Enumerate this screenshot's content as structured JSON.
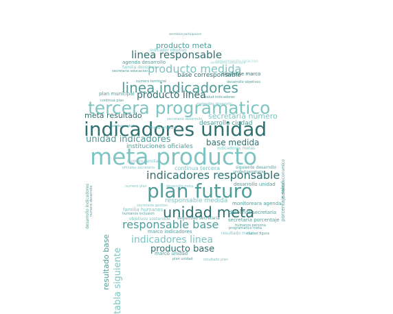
{
  "colors": {
    "dark": "#2f6f6f",
    "mid": "#4f9c9a",
    "light": "#7ec4c2",
    "pale": "#a9d8d6"
  },
  "words": [
    {
      "text": "meta producto",
      "tone": "light"
    },
    {
      "text": "indicadores unidad",
      "tone": "dark"
    },
    {
      "text": "plan futuro",
      "tone": "mid"
    },
    {
      "text": "tercera programatico",
      "tone": "light"
    },
    {
      "text": "unidad meta",
      "tone": "dark"
    },
    {
      "text": "linea indicadores",
      "tone": "mid"
    },
    {
      "text": "indicadores responsable",
      "tone": "dark"
    },
    {
      "text": "producto medida",
      "tone": "light"
    },
    {
      "text": "linea responsable",
      "tone": "dark"
    },
    {
      "text": "responsable base",
      "tone": "mid"
    },
    {
      "text": "indicadores linea",
      "tone": "light"
    },
    {
      "text": "unidad indicadores",
      "tone": "mid"
    },
    {
      "text": "producto linea",
      "tone": "dark"
    },
    {
      "text": "producto base",
      "tone": "dark"
    },
    {
      "text": "producto meta",
      "tone": "mid"
    },
    {
      "text": "base medida",
      "tone": "dark"
    },
    {
      "text": "meta resultado",
      "tone": "dark"
    },
    {
      "text": "secretaria numero",
      "tone": "light"
    },
    {
      "text": "instituciones oficiales",
      "tone": "mid"
    },
    {
      "text": "base corresponsable",
      "tone": "dark"
    },
    {
      "text": "tabla siguiente",
      "tone": "light"
    },
    {
      "text": "resultado base",
      "tone": "mid"
    },
    {
      "text": "desarrollo ciudad",
      "tone": "mid"
    },
    {
      "text": "responsable medida",
      "tone": "light"
    },
    {
      "text": "continua tercera",
      "tone": "light"
    },
    {
      "text": "agenda desarrollo",
      "tone": "mid"
    },
    {
      "text": "plan municipal",
      "tone": "mid"
    },
    {
      "text": "marco indicadores",
      "tone": "mid"
    },
    {
      "text": "marco unidad",
      "tone": "mid"
    },
    {
      "text": "siguiente marco",
      "tone": "dark"
    },
    {
      "text": "secretaria porcentaje",
      "tone": "mid"
    },
    {
      "text": "porcentaje salud",
      "tone": "mid"
    },
    {
      "text": "desarrollo unidad",
      "tone": "mid"
    },
    {
      "text": "numero familia",
      "tone": "light"
    },
    {
      "text": "seguridad secretaria",
      "tone": "mid"
    },
    {
      "text": "derechos secretaria",
      "tone": "mid"
    },
    {
      "text": "monitoreara agenda",
      "tone": "mid"
    },
    {
      "text": "familia humanos",
      "tone": "light"
    },
    {
      "text": "objetivos sostenible",
      "tone": "light"
    },
    {
      "text": "resultado meta",
      "tone": "light"
    },
    {
      "text": "continua plan",
      "tone": "mid"
    },
    {
      "text": "numero territorial",
      "tone": "mid"
    },
    {
      "text": "secretaria educacion",
      "tone": "mid"
    },
    {
      "text": "indicador objetivo",
      "tone": "light"
    },
    {
      "text": "seguimiento relacion",
      "tone": "pale"
    },
    {
      "text": "desarrollo objetivos",
      "tone": "mid"
    },
    {
      "text": "humanos persona",
      "tone": "mid"
    },
    {
      "text": "programatico meta",
      "tone": "mid"
    },
    {
      "text": "ciudad figura",
      "tone": "mid"
    },
    {
      "text": "secretaria participacion",
      "tone": "mid"
    },
    {
      "text": "siguiente desarrollo",
      "tone": "mid"
    },
    {
      "text": "familia derechos",
      "tone": "light"
    },
    {
      "text": "oficiales secretaria",
      "tone": "light"
    },
    {
      "text": "desarrollo sostenible",
      "tone": "pale"
    },
    {
      "text": "objetivo producto",
      "tone": "mid"
    },
    {
      "text": "secretaria desarrollo",
      "tone": "light"
    },
    {
      "text": "numero plan",
      "tone": "light"
    },
    {
      "text": "desarrollo indicadores",
      "tone": "mid"
    },
    {
      "text": "numero desarrollo",
      "tone": "mid"
    },
    {
      "text": "desarrollo meta",
      "tone": "light"
    },
    {
      "text": "humanos inclusion",
      "tone": "mid"
    },
    {
      "text": "indicadores metas",
      "tone": "light"
    },
    {
      "text": "numero economico",
      "tone": "mid"
    },
    {
      "text": "secretaria gestion",
      "tone": "light"
    },
    {
      "text": "resultado plan",
      "tone": "light"
    },
    {
      "text": "plan unidad",
      "tone": "mid"
    },
    {
      "text": "sostenible desarrollo",
      "tone": "light"
    },
    {
      "text": "salud indicadores",
      "tone": "mid"
    },
    {
      "text": "meta unidad",
      "tone": "light"
    },
    {
      "text": "unidad secretaria",
      "tone": "mid"
    }
  ]
}
